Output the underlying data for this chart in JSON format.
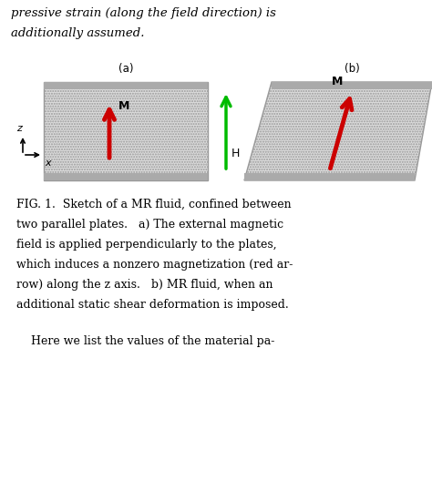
{
  "label_a": "(a)",
  "label_b": "(b)",
  "label_M": "M",
  "label_H": "H",
  "label_z": "z",
  "label_x": "x",
  "caption": [
    "FIG. 1.  Sketch of a MR fluid, confined between",
    "two parallel plates.   a) The external magnetic",
    "field is applied perpendicularly to the plates,",
    "which induces a nonzero magnetization (red ar-",
    "row) along the z axis.   b) MR fluid, when an",
    "additional static shear deformation is imposed."
  ],
  "caption2": "    Here we list the values of the material pa-",
  "top_text1": "pressive strain (along the field direction) is",
  "top_text2": "additionally assumed.",
  "rect_fill": "#dcdcdc",
  "rect_edge": "#999999",
  "bar_fill": "#aaaaaa",
  "arrow_red": "#cc0000",
  "arrow_green": "#00bb00",
  "bg": "#ffffff"
}
